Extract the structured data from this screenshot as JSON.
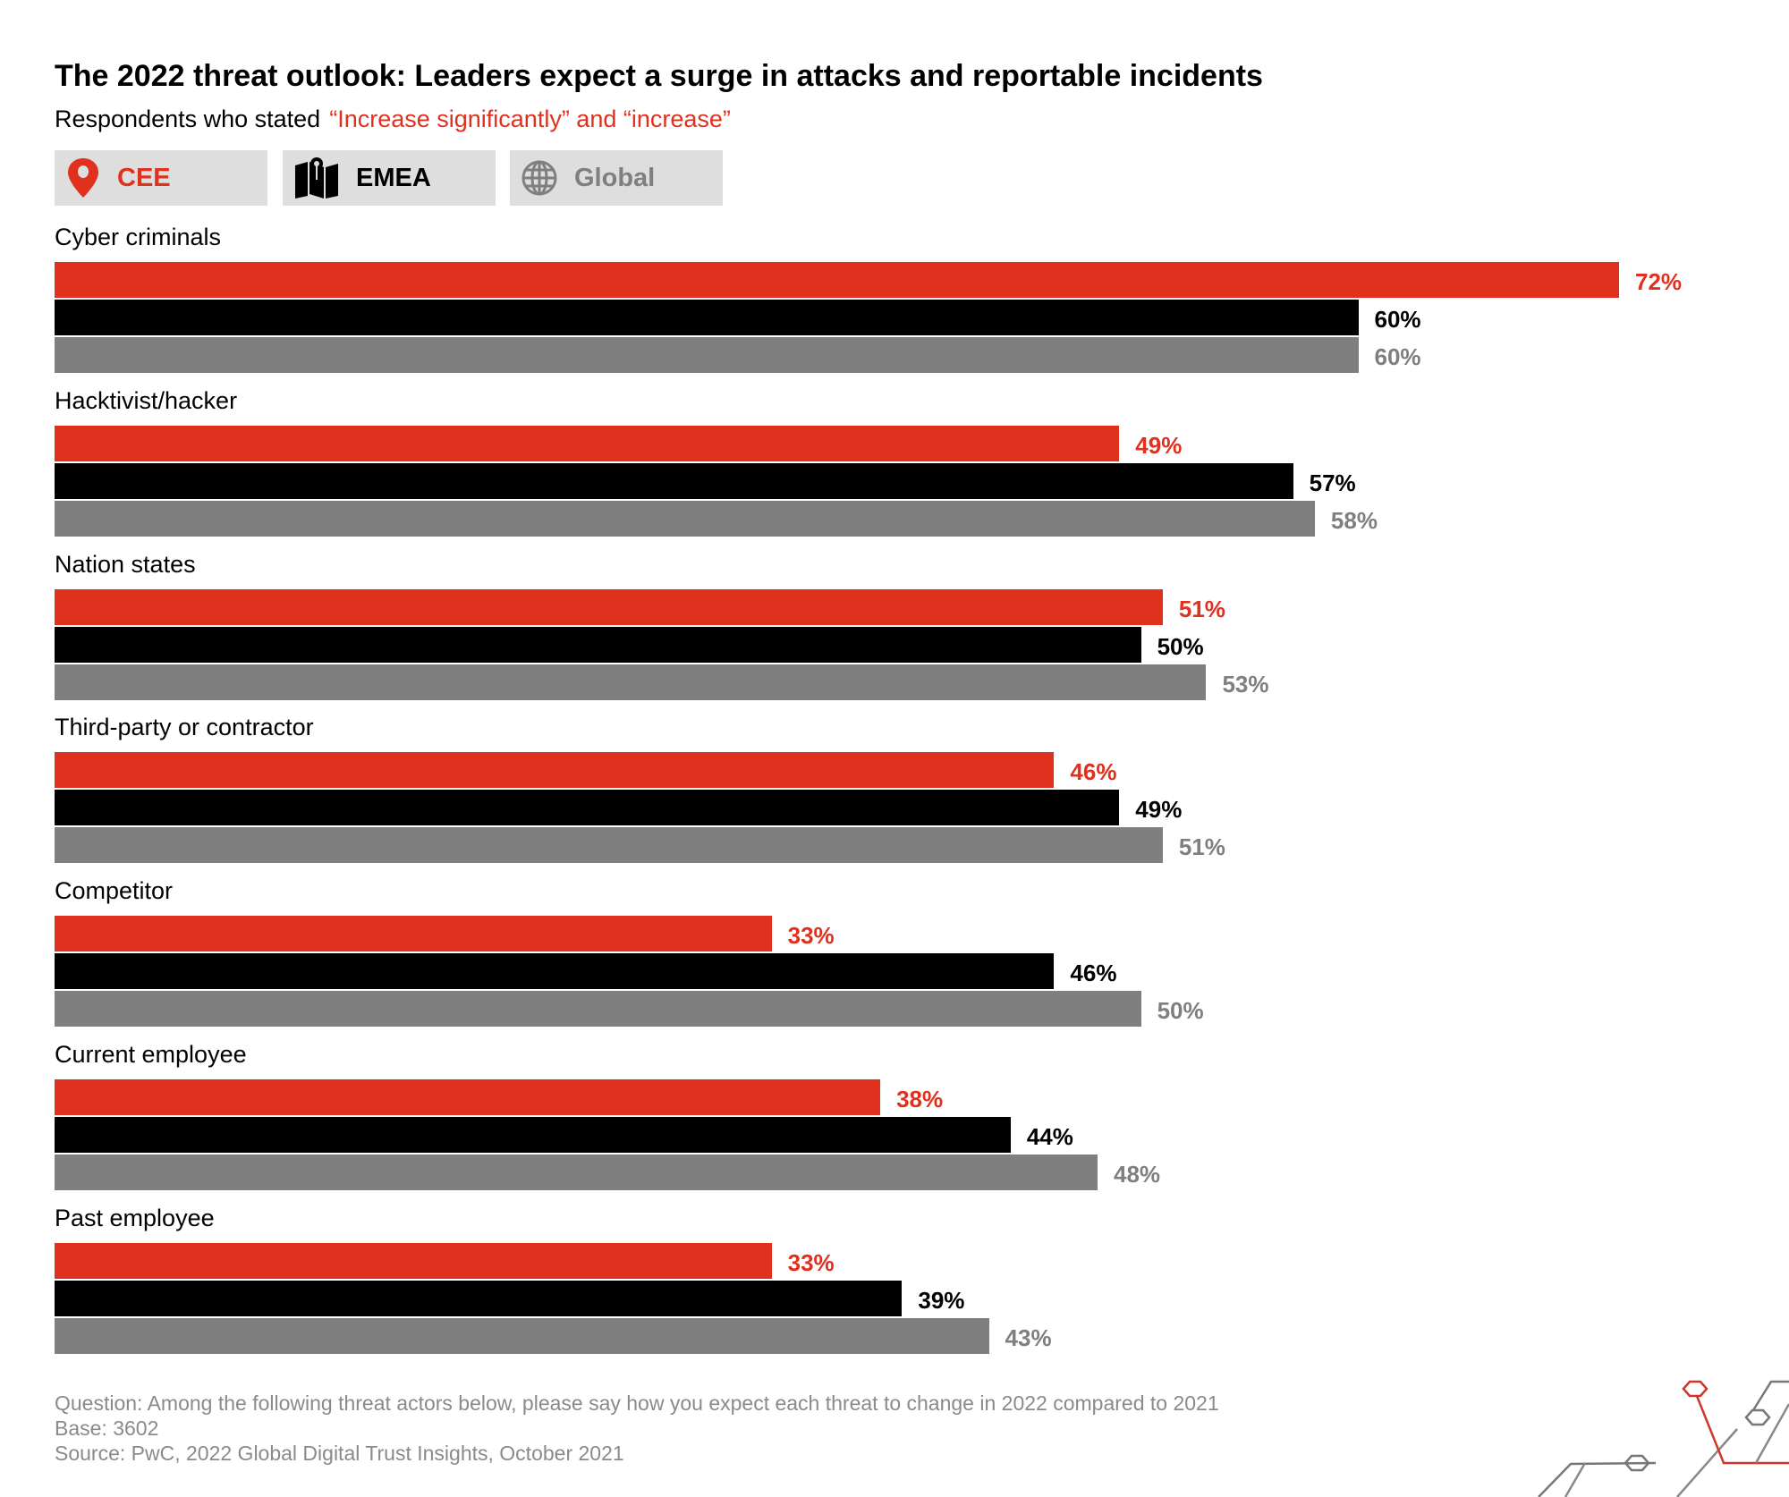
{
  "title": "The 2022 threat outlook: Leaders expect a surge in attacks and reportable incidents",
  "subtitle": {
    "prefix": "Respondents who stated",
    "highlight": "“Increase significantly” and “increase”"
  },
  "legend": [
    {
      "label": "CEE",
      "icon": "map-pin-icon",
      "color": "#e0301e"
    },
    {
      "label": "EMEA",
      "icon": "map-icon",
      "color": "#000000"
    },
    {
      "label": "Global",
      "icon": "globe-icon",
      "color": "#7f7f7f"
    }
  ],
  "chart_data": {
    "type": "bar",
    "orientation": "horizontal",
    "title": "The 2022 threat outlook: Leaders expect a surge in attacks and reportable incidents",
    "categories": [
      "Cyber criminals",
      "Hacktivist/hacker",
      "Nation states",
      "Third-party or contractor",
      "Competitor",
      "Current employee",
      "Past employee"
    ],
    "series": [
      {
        "name": "CEE",
        "color": "#e0301e",
        "values": [
          72,
          49,
          51,
          46,
          33,
          38,
          33
        ]
      },
      {
        "name": "EMEA",
        "color": "#000000",
        "values": [
          60,
          57,
          50,
          49,
          46,
          44,
          39
        ]
      },
      {
        "name": "Global",
        "color": "#7f7f7f",
        "values": [
          60,
          58,
          53,
          51,
          50,
          48,
          43
        ]
      }
    ],
    "unit": "%",
    "xlim": [
      0,
      100
    ],
    "grid": false,
    "legend_placement": "top-left"
  },
  "footer": {
    "question": "Question: Among the following threat actors below, please say how you expect each threat to change in 2022 compared to 2021",
    "base": "Base: 3602",
    "source": "Source: PwC, 2022 Global Digital Trust Insights, October 2021"
  }
}
